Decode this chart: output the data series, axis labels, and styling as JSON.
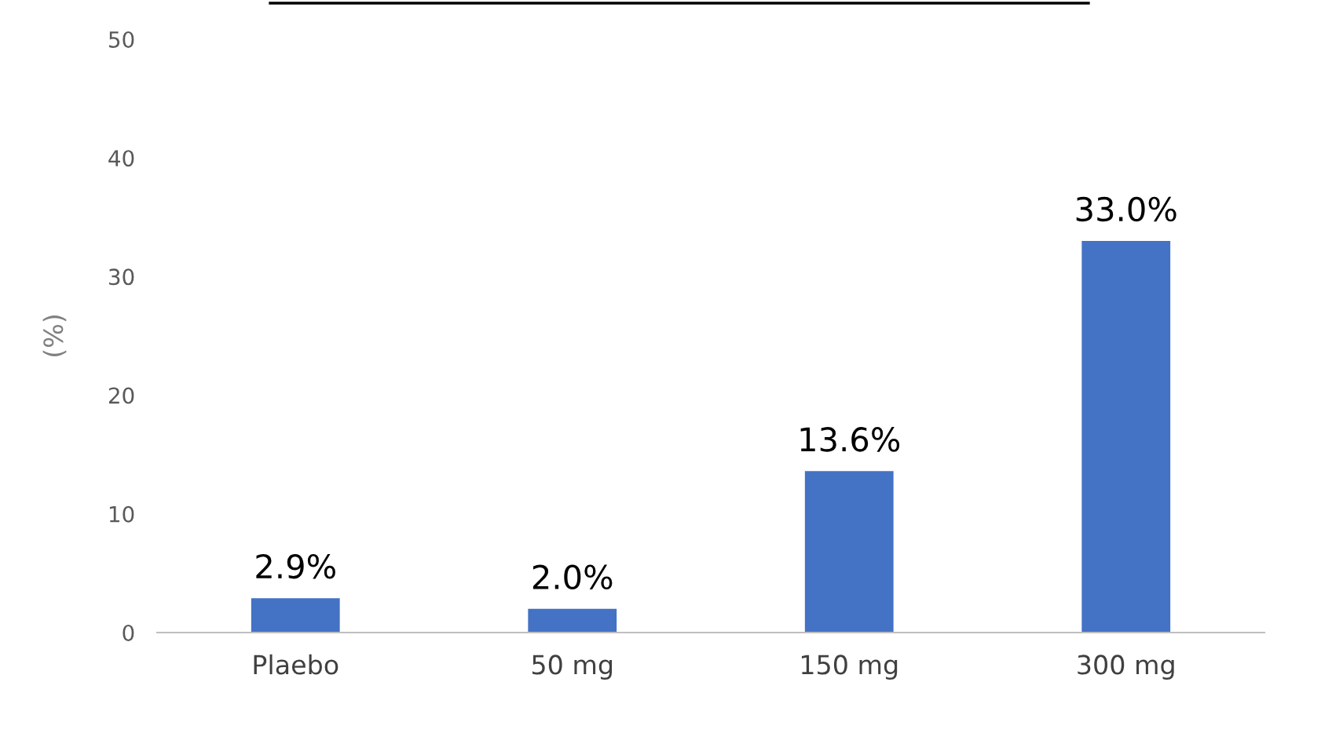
{
  "chart_data": {
    "type": "bar",
    "ylabel": "(%)",
    "categories": [
      "Plaebo",
      "50 mg",
      "150 mg",
      "300 mg"
    ],
    "values": [
      2.9,
      2.0,
      13.6,
      33.0
    ],
    "color": "#4472c4",
    "value_labels": [
      "2.9%",
      "2.0%",
      "13.6%",
      "33.0%"
    ],
    "ylim": [
      0,
      50
    ],
    "yticks": [
      0,
      10,
      20,
      30,
      40,
      50
    ],
    "grid": false
  }
}
